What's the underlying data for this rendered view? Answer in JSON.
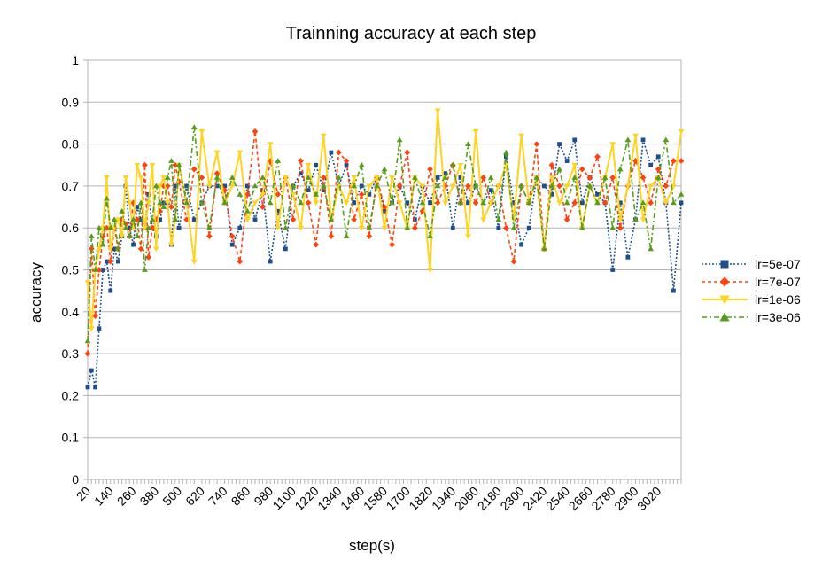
{
  "chart_data": {
    "type": "line",
    "title": "Trainning accuracy at each step",
    "xlabel": "step(s)",
    "ylabel": "accuracy",
    "ylim": [
      0,
      1
    ],
    "yticks": [
      "0",
      "0.1",
      "0.2",
      "0.3",
      "0.4",
      "0.5",
      "0.6",
      "0.7",
      "0.8",
      "0.9",
      "1"
    ],
    "xticks": [
      "20",
      "140",
      "260",
      "380",
      "500",
      "620",
      "740",
      "860",
      "980",
      "1100",
      "1220",
      "1340",
      "1460",
      "1580",
      "1700",
      "1820",
      "1940",
      "2060",
      "2180",
      "2300",
      "2420",
      "2540",
      "2660",
      "2780",
      "2900",
      "3020"
    ],
    "xrange": [
      20,
      3140
    ],
    "grid": true,
    "legend_position": "right",
    "series": [
      {
        "name": "lr=5e-07",
        "color": "#1f4e8c",
        "marker": "square",
        "dash": "2,2",
        "x": [
          20,
          40,
          60,
          80,
          100,
          120,
          140,
          160,
          180,
          200,
          220,
          240,
          260,
          280,
          300,
          320,
          340,
          360,
          380,
          400,
          420,
          440,
          460,
          480,
          500,
          540,
          580,
          620,
          660,
          700,
          740,
          780,
          820,
          860,
          900,
          940,
          980,
          1020,
          1060,
          1100,
          1140,
          1180,
          1220,
          1260,
          1300,
          1340,
          1380,
          1420,
          1460,
          1500,
          1540,
          1580,
          1620,
          1660,
          1700,
          1740,
          1780,
          1820,
          1860,
          1900,
          1940,
          1980,
          2020,
          2060,
          2100,
          2140,
          2180,
          2220,
          2260,
          2300,
          2340,
          2380,
          2420,
          2460,
          2500,
          2540,
          2580,
          2620,
          2660,
          2700,
          2740,
          2780,
          2820,
          2860,
          2900,
          2940,
          2980,
          3020,
          3060,
          3100,
          3140
        ],
        "values": [
          0.22,
          0.26,
          0.22,
          0.36,
          0.5,
          0.52,
          0.45,
          0.55,
          0.52,
          0.58,
          0.7,
          0.6,
          0.56,
          0.65,
          0.62,
          0.6,
          0.68,
          0.6,
          0.58,
          0.62,
          0.66,
          0.66,
          0.56,
          0.7,
          0.6,
          0.7,
          0.62,
          0.66,
          0.7,
          0.7,
          0.7,
          0.56,
          0.6,
          0.7,
          0.62,
          0.69,
          0.52,
          0.64,
          0.55,
          0.7,
          0.73,
          0.69,
          0.75,
          0.69,
          0.78,
          0.7,
          0.75,
          0.66,
          0.7,
          0.68,
          0.72,
          0.64,
          0.66,
          0.7,
          0.66,
          0.62,
          0.7,
          0.66,
          0.72,
          0.73,
          0.6,
          0.72,
          0.66,
          0.7,
          0.66,
          0.69,
          0.6,
          0.77,
          0.66,
          0.56,
          0.6,
          0.72,
          0.7,
          0.68,
          0.8,
          0.76,
          0.81,
          0.66,
          0.72,
          0.68,
          0.66,
          0.5,
          0.66,
          0.53,
          0.62,
          0.81,
          0.75,
          0.77,
          0.66,
          0.45,
          0.66
        ]
      },
      {
        "name": "lr=7e-07",
        "color": "#ff420e",
        "marker": "diamond",
        "dash": "4,3",
        "x": [
          20,
          40,
          60,
          80,
          100,
          120,
          140,
          160,
          180,
          200,
          220,
          240,
          260,
          280,
          300,
          320,
          340,
          360,
          380,
          400,
          420,
          440,
          460,
          480,
          500,
          540,
          580,
          620,
          660,
          700,
          740,
          780,
          820,
          860,
          900,
          940,
          980,
          1020,
          1060,
          1100,
          1140,
          1180,
          1220,
          1260,
          1300,
          1340,
          1380,
          1420,
          1460,
          1500,
          1540,
          1580,
          1620,
          1660,
          1700,
          1740,
          1780,
          1820,
          1860,
          1900,
          1940,
          1980,
          2020,
          2060,
          2100,
          2140,
          2180,
          2220,
          2260,
          2300,
          2340,
          2380,
          2420,
          2460,
          2500,
          2540,
          2580,
          2620,
          2660,
          2700,
          2740,
          2780,
          2820,
          2860,
          2900,
          2940,
          2980,
          3020,
          3060,
          3100,
          3140
        ],
        "values": [
          0.3,
          0.55,
          0.39,
          0.5,
          0.58,
          0.6,
          0.52,
          0.6,
          0.55,
          0.62,
          0.61,
          0.58,
          0.66,
          0.62,
          0.55,
          0.75,
          0.53,
          0.6,
          0.62,
          0.64,
          0.7,
          0.7,
          0.65,
          0.75,
          0.71,
          0.62,
          0.74,
          0.72,
          0.58,
          0.73,
          0.69,
          0.58,
          0.52,
          0.68,
          0.83,
          0.65,
          0.76,
          0.68,
          0.72,
          0.62,
          0.76,
          0.66,
          0.56,
          0.72,
          0.58,
          0.78,
          0.76,
          0.62,
          0.68,
          0.58,
          0.72,
          0.65,
          0.56,
          0.7,
          0.78,
          0.6,
          0.64,
          0.74,
          0.66,
          0.7,
          0.75,
          0.66,
          0.7,
          0.66,
          0.72,
          0.66,
          0.7,
          0.6,
          0.52,
          0.7,
          0.66,
          0.8,
          0.55,
          0.75,
          0.7,
          0.62,
          0.66,
          0.74,
          0.72,
          0.77,
          0.66,
          0.72,
          0.6,
          0.7,
          0.76,
          0.72,
          0.66,
          0.74,
          0.7,
          0.76,
          0.76
        ]
      },
      {
        "name": "lr=1e-06",
        "color": "#ffd320",
        "marker": "triangle-down",
        "dash": "",
        "x": [
          20,
          40,
          60,
          80,
          100,
          120,
          140,
          160,
          180,
          200,
          220,
          240,
          260,
          280,
          300,
          320,
          340,
          360,
          380,
          400,
          420,
          440,
          460,
          480,
          500,
          540,
          580,
          620,
          660,
          700,
          740,
          780,
          820,
          860,
          900,
          940,
          980,
          1020,
          1060,
          1100,
          1140,
          1180,
          1220,
          1260,
          1300,
          1340,
          1380,
          1420,
          1460,
          1500,
          1540,
          1580,
          1620,
          1660,
          1700,
          1740,
          1780,
          1820,
          1860,
          1900,
          1940,
          1980,
          2020,
          2060,
          2100,
          2140,
          2180,
          2220,
          2260,
          2300,
          2340,
          2380,
          2420,
          2460,
          2500,
          2540,
          2580,
          2620,
          2660,
          2700,
          2740,
          2780,
          2820,
          2860,
          2900,
          2940,
          2980,
          3020,
          3060,
          3100,
          3140
        ],
        "values": [
          0.47,
          0.36,
          0.5,
          0.55,
          0.6,
          0.72,
          0.55,
          0.6,
          0.62,
          0.58,
          0.72,
          0.66,
          0.6,
          0.75,
          0.72,
          0.6,
          0.66,
          0.75,
          0.55,
          0.7,
          0.72,
          0.66,
          0.56,
          0.62,
          0.75,
          0.66,
          0.52,
          0.83,
          0.7,
          0.78,
          0.66,
          0.7,
          0.78,
          0.62,
          0.66,
          0.68,
          0.8,
          0.6,
          0.72,
          0.68,
          0.6,
          0.75,
          0.66,
          0.82,
          0.62,
          0.7,
          0.66,
          0.72,
          0.6,
          0.7,
          0.72,
          0.6,
          0.72,
          0.66,
          0.6,
          0.72,
          0.7,
          0.5,
          0.88,
          0.66,
          0.7,
          0.75,
          0.58,
          0.83,
          0.62,
          0.66,
          0.7,
          0.75,
          0.62,
          0.82,
          0.66,
          0.72,
          0.55,
          0.72,
          0.66,
          0.7,
          0.75,
          0.6,
          0.7,
          0.66,
          0.72,
          0.8,
          0.62,
          0.7,
          0.82,
          0.62,
          0.7,
          0.72,
          0.66,
          0.7,
          0.83
        ]
      },
      {
        "name": "lr=3e-06",
        "color": "#579d1c",
        "marker": "triangle-up",
        "dash": "6,3,2,3",
        "x": [
          20,
          40,
          60,
          80,
          100,
          120,
          140,
          160,
          180,
          200,
          220,
          240,
          260,
          280,
          300,
          320,
          340,
          360,
          380,
          400,
          420,
          440,
          460,
          480,
          500,
          540,
          580,
          620,
          660,
          700,
          740,
          780,
          820,
          860,
          900,
          940,
          980,
          1020,
          1060,
          1100,
          1140,
          1180,
          1220,
          1260,
          1300,
          1340,
          1380,
          1420,
          1460,
          1500,
          1540,
          1580,
          1620,
          1660,
          1700,
          1740,
          1780,
          1820,
          1860,
          1900,
          1940,
          1980,
          2020,
          2060,
          2100,
          2140,
          2180,
          2220,
          2260,
          2300,
          2340,
          2380,
          2420,
          2460,
          2500,
          2540,
          2580,
          2620,
          2660,
          2700,
          2740,
          2780,
          2820,
          2860,
          2900,
          2940,
          2980,
          3020,
          3060,
          3100,
          3140
        ],
        "values": [
          0.33,
          0.58,
          0.5,
          0.6,
          0.56,
          0.67,
          0.6,
          0.62,
          0.55,
          0.64,
          0.6,
          0.58,
          0.62,
          0.58,
          0.66,
          0.5,
          0.6,
          0.62,
          0.7,
          0.66,
          0.65,
          0.72,
          0.76,
          0.62,
          0.75,
          0.66,
          0.84,
          0.66,
          0.6,
          0.72,
          0.66,
          0.72,
          0.68,
          0.64,
          0.7,
          0.72,
          0.66,
          0.76,
          0.6,
          0.7,
          0.66,
          0.72,
          0.68,
          0.7,
          0.62,
          0.72,
          0.58,
          0.7,
          0.75,
          0.6,
          0.7,
          0.74,
          0.66,
          0.81,
          0.6,
          0.72,
          0.66,
          0.58,
          0.7,
          0.72,
          0.75,
          0.66,
          0.8,
          0.7,
          0.66,
          0.72,
          0.62,
          0.78,
          0.6,
          0.7,
          0.66,
          0.72,
          0.55,
          0.7,
          0.74,
          0.66,
          0.72,
          0.6,
          0.7,
          0.66,
          0.72,
          0.6,
          0.74,
          0.81,
          0.62,
          0.66,
          0.55,
          0.72,
          0.81,
          0.66,
          0.68
        ]
      }
    ]
  }
}
